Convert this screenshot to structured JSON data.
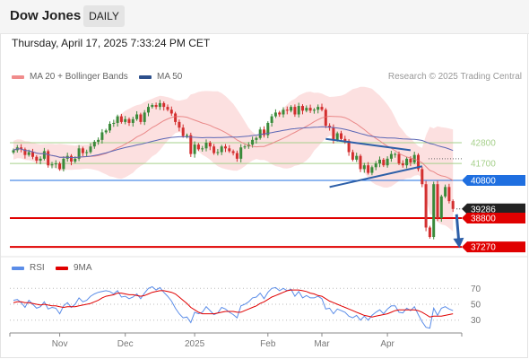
{
  "header": {
    "title": "Dow Jones",
    "period": "DAILY"
  },
  "timestamp": "Thursday, April 17, 2025 7:33:24 PM CET",
  "legend": {
    "bollinger_label": "MA 20 + Bollinger Bands",
    "ma50_label": "MA 50",
    "credit": "Research © 2025 Trading Central"
  },
  "colors": {
    "bull": "#3a8a3a",
    "bear": "#d32f2f",
    "ma50": "#5b67b5",
    "ma20": "#e57373",
    "band": "#fbd6d6",
    "support": "#e00000",
    "pivot": "#1f6fe0",
    "resistance": "#a6d08b",
    "arrow": "#2d5fa8",
    "rsi": "#5b8de8",
    "rsi_ma": "#e00000"
  },
  "levels": [
    {
      "value": 42800,
      "label": "42800",
      "kind": "resistance"
    },
    {
      "value": 41700,
      "label": "41700",
      "kind": "resistance"
    },
    {
      "value": 40800,
      "label": "40800",
      "kind": "pivot"
    },
    {
      "value": 39286,
      "label": "39286",
      "kind": "last"
    },
    {
      "value": 38800,
      "label": "38800",
      "kind": "support"
    },
    {
      "value": 37270,
      "label": "37270",
      "kind": "support"
    }
  ],
  "indicator_panel": {
    "rsi_label": "RSI",
    "ma_label": "9MA",
    "ticks": [
      "70",
      "50",
      "30"
    ]
  },
  "x_axis": {
    "months": [
      "Nov",
      "Dec",
      "2025",
      "Feb",
      "Mar",
      "Apr"
    ]
  },
  "chart_data": {
    "type": "candlestick",
    "price_ylim": [
      36800,
      45800
    ],
    "rsi_ylim": [
      15,
      85
    ],
    "close": [
      42400,
      42550,
      42450,
      42150,
      42300,
      42050,
      41850,
      41950,
      42350,
      41600,
      41650,
      41700,
      41400,
      41950,
      42100,
      41800,
      41950,
      42500,
      42250,
      42300,
      42600,
      42850,
      42950,
      43350,
      43450,
      43800,
      43850,
      44200,
      43900,
      44050,
      43850,
      44050,
      44300,
      43900,
      44400,
      44700,
      44800,
      44700,
      44900,
      44700,
      44550,
      44350,
      43900,
      43600,
      43150,
      43200,
      42200,
      42700,
      42450,
      42500,
      42800,
      42600,
      42250,
      42300,
      42600,
      42500,
      42350,
      42250,
      41950,
      42550,
      42600,
      42700,
      42950,
      43050,
      43500,
      43200,
      43850,
      44200,
      44400,
      44300,
      44550,
      44500,
      44700,
      44300,
      44750,
      44500,
      44650,
      44500,
      44550,
      44700,
      44550,
      43700,
      43600,
      42950,
      43300,
      43000,
      42900,
      42300,
      41900,
      42100,
      41400,
      41600,
      41200,
      41500,
      41700,
      41900,
      41600,
      41950,
      42200,
      42200,
      41700,
      41600,
      41950,
      41750,
      42150,
      41400,
      40600,
      38300,
      37800,
      40600,
      38800,
      39950,
      40450,
      39700,
      39286
    ],
    "rsi": [
      55,
      56,
      52,
      46,
      55,
      50,
      45,
      47,
      53,
      44,
      46,
      45,
      38,
      48,
      52,
      46,
      50,
      58,
      53,
      55,
      60,
      63,
      65,
      66,
      67,
      66,
      63,
      67,
      59,
      60,
      57,
      59,
      63,
      57,
      64,
      70,
      72,
      68,
      71,
      65,
      60,
      54,
      45,
      38,
      33,
      34,
      27,
      40,
      38,
      40,
      47,
      42,
      37,
      39,
      46,
      44,
      40,
      37,
      33,
      48,
      50,
      53,
      58,
      59,
      64,
      57,
      65,
      70,
      71,
      67,
      70,
      67,
      69,
      60,
      66,
      58,
      61,
      58,
      58,
      60,
      57,
      44,
      45,
      38,
      44,
      42,
      40,
      35,
      33,
      36,
      30,
      35,
      30,
      36,
      40,
      43,
      38,
      44,
      48,
      48,
      40,
      39,
      45,
      42,
      47,
      37,
      28,
      21,
      20,
      45,
      36,
      45,
      47,
      44,
      42
    ],
    "rsi_ma": [
      52,
      53,
      53,
      52,
      52,
      51,
      50,
      49,
      50,
      49,
      48,
      48,
      47,
      46,
      47,
      47,
      47,
      48,
      49,
      50,
      51,
      53,
      55,
      58,
      60,
      61,
      62,
      64,
      64,
      63,
      62,
      62,
      61,
      60,
      61,
      63,
      65,
      66,
      67,
      67,
      66,
      65,
      63,
      59,
      55,
      51,
      46,
      43,
      40,
      38,
      38,
      38,
      38,
      39,
      40,
      41,
      41,
      41,
      40,
      40,
      42,
      44,
      46,
      48,
      51,
      53,
      56,
      59,
      61,
      63,
      65,
      67,
      68,
      68,
      68,
      67,
      66,
      64,
      63,
      61,
      60,
      57,
      54,
      52,
      50,
      48,
      46,
      44,
      42,
      40,
      38,
      36,
      35,
      34,
      35,
      36,
      37,
      38,
      40,
      42,
      43,
      43,
      43,
      43,
      43,
      42,
      40,
      37,
      34,
      35,
      35,
      35,
      36,
      37,
      38
    ]
  }
}
